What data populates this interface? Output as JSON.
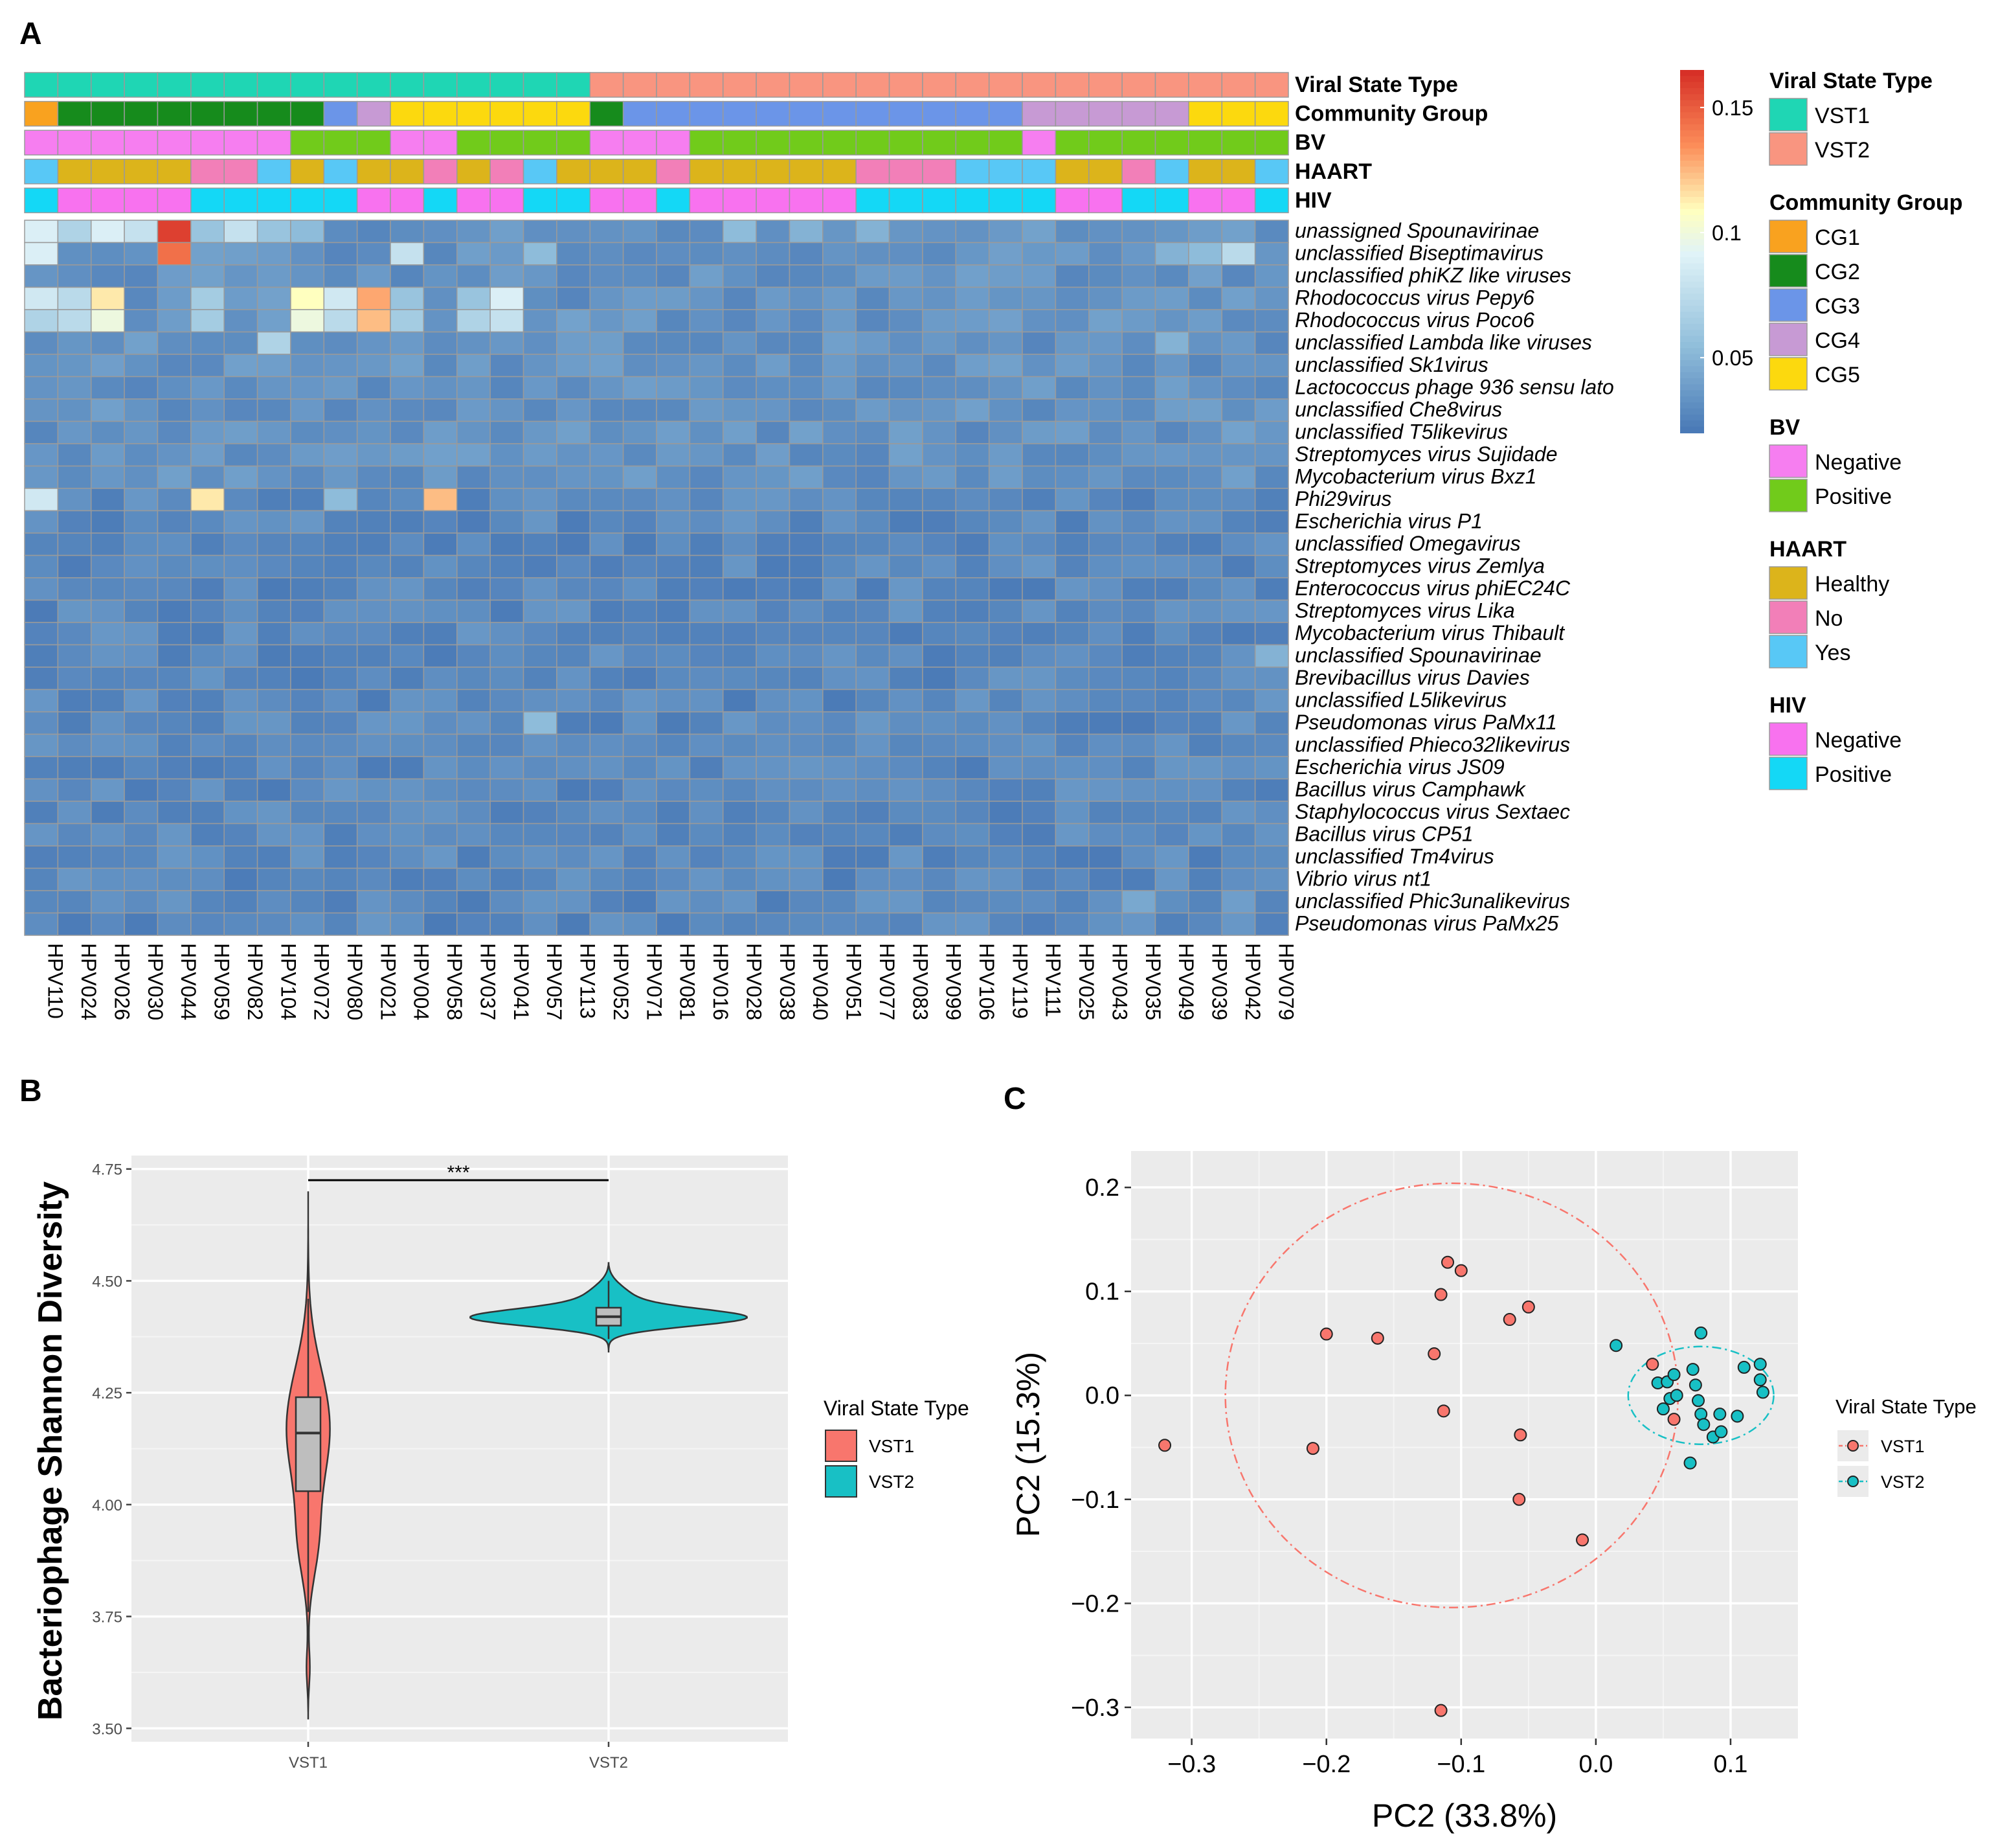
{
  "chart_data": [
    {
      "panel": "A",
      "type": "heatmap",
      "samples": [
        "HPV110",
        "HPV024",
        "HPV026",
        "HPV030",
        "HPV044",
        "HPV059",
        "HPV082",
        "HPV104",
        "HPV072",
        "HPV080",
        "HPV021",
        "HPV004",
        "HPV058",
        "HPV037",
        "HPV041",
        "HPV057",
        "HPV113",
        "HPV052",
        "HPV071",
        "HPV081",
        "HPV016",
        "HPV028",
        "HPV038",
        "HPV040",
        "HPV051",
        "HPV077",
        "HPV083",
        "HPV099",
        "HPV106",
        "HPV119",
        "HPV111",
        "HPV025",
        "HPV043",
        "HPV035",
        "HPV049",
        "HPV039",
        "HPV042",
        "HPV079"
      ],
      "rows": [
        "unassigned Spounavirinae",
        "unclassified Biseptimavirus",
        "unclassified phiKZ like viruses",
        "Rhodococcus virus Pepy6",
        "Rhodococcus virus Poco6",
        "unclassified Lambda like viruses",
        "unclassified Sk1virus",
        "Lactococcus phage 936 sensu lato",
        "unclassified Che8virus",
        "unclassified T5likevirus",
        "Streptomyces virus Sujidade",
        "Mycobacterium virus Bxz1",
        "Phi29virus",
        "Escherichia virus P1",
        "unclassified Omegavirus",
        "Streptomyces virus Zemlya",
        "Enterococcus virus phiEC24C",
        "Streptomyces virus Lika",
        "Mycobacterium virus Thibault",
        "unclassified Spounavirinae",
        "Brevibacillus virus Davies",
        "unclassified L5likevirus",
        "Pseudomonas virus PaMx11",
        "unclassified Phieco32likevirus",
        "Escherichia virus JS09",
        "Bacillus virus Camphawk",
        "Staphylococcus virus Sextaec",
        "Bacillus virus CP51",
        "unclassified Tm4virus",
        "Vibrio virus nt1",
        "unclassified Phic3unalikevirus",
        "Pseudomonas virus PaMx25"
      ],
      "highlights": [
        {
          "row": 0,
          "col": 0,
          "v": 0.09
        },
        {
          "row": 0,
          "col": 1,
          "v": 0.07
        },
        {
          "row": 0,
          "col": 2,
          "v": 0.09
        },
        {
          "row": 0,
          "col": 3,
          "v": 0.08
        },
        {
          "row": 0,
          "col": 4,
          "v": 0.16
        },
        {
          "row": 0,
          "col": 5,
          "v": 0.06
        },
        {
          "row": 0,
          "col": 6,
          "v": 0.08
        },
        {
          "row": 0,
          "col": 7,
          "v": 0.06
        },
        {
          "row": 0,
          "col": 8,
          "v": 0.055
        },
        {
          "row": 0,
          "col": 21,
          "v": 0.055
        },
        {
          "row": 0,
          "col": 23,
          "v": 0.05
        },
        {
          "row": 0,
          "col": 25,
          "v": 0.05
        },
        {
          "row": 1,
          "col": 0,
          "v": 0.09
        },
        {
          "row": 1,
          "col": 4,
          "v": 0.145
        },
        {
          "row": 1,
          "col": 11,
          "v": 0.08
        },
        {
          "row": 1,
          "col": 15,
          "v": 0.055
        },
        {
          "row": 1,
          "col": 34,
          "v": 0.05
        },
        {
          "row": 1,
          "col": 35,
          "v": 0.055
        },
        {
          "row": 1,
          "col": 36,
          "v": 0.075
        },
        {
          "row": 3,
          "col": 0,
          "v": 0.085
        },
        {
          "row": 3,
          "col": 1,
          "v": 0.075
        },
        {
          "row": 3,
          "col": 2,
          "v": 0.115
        },
        {
          "row": 3,
          "col": 5,
          "v": 0.065
        },
        {
          "row": 3,
          "col": 8,
          "v": 0.11
        },
        {
          "row": 3,
          "col": 9,
          "v": 0.085
        },
        {
          "row": 3,
          "col": 10,
          "v": 0.13
        },
        {
          "row": 3,
          "col": 11,
          "v": 0.06
        },
        {
          "row": 3,
          "col": 13,
          "v": 0.06
        },
        {
          "row": 3,
          "col": 14,
          "v": 0.09
        },
        {
          "row": 4,
          "col": 0,
          "v": 0.07
        },
        {
          "row": 4,
          "col": 1,
          "v": 0.075
        },
        {
          "row": 4,
          "col": 2,
          "v": 0.1
        },
        {
          "row": 4,
          "col": 5,
          "v": 0.065
        },
        {
          "row": 4,
          "col": 8,
          "v": 0.1
        },
        {
          "row": 4,
          "col": 9,
          "v": 0.075
        },
        {
          "row": 4,
          "col": 10,
          "v": 0.125
        },
        {
          "row": 4,
          "col": 11,
          "v": 0.065
        },
        {
          "row": 4,
          "col": 13,
          "v": 0.07
        },
        {
          "row": 4,
          "col": 14,
          "v": 0.08
        },
        {
          "row": 5,
          "col": 7,
          "v": 0.07
        },
        {
          "row": 5,
          "col": 34,
          "v": 0.05
        },
        {
          "row": 12,
          "col": 0,
          "v": 0.085
        },
        {
          "row": 12,
          "col": 5,
          "v": 0.115
        },
        {
          "row": 12,
          "col": 9,
          "v": 0.055
        },
        {
          "row": 12,
          "col": 12,
          "v": 0.125
        },
        {
          "row": 19,
          "col": 37,
          "v": 0.05
        },
        {
          "row": 22,
          "col": 15,
          "v": 0.055
        },
        {
          "row": 30,
          "col": 33,
          "v": 0.045
        },
        {
          "row": 30,
          "col": 36,
          "v": 0.04
        },
        {
          "row": 9,
          "col": 31,
          "v": 0.04
        },
        {
          "row": 24,
          "col": 19,
          "v": 0.035
        }
      ],
      "annotations": {
        "Viral State Type": [
          "VST1",
          "VST1",
          "VST1",
          "VST1",
          "VST1",
          "VST1",
          "VST1",
          "VST1",
          "VST1",
          "VST1",
          "VST1",
          "VST1",
          "VST1",
          "VST1",
          "VST1",
          "VST1",
          "VST1",
          "VST2",
          "VST2",
          "VST2",
          "VST2",
          "VST2",
          "VST2",
          "VST2",
          "VST2",
          "VST2",
          "VST2",
          "VST2",
          "VST2",
          "VST2",
          "VST2",
          "VST2",
          "VST2",
          "VST2",
          "VST2",
          "VST2",
          "VST2",
          "VST2"
        ],
        "Community Group": [
          "CG1",
          "CG2",
          "CG2",
          "CG2",
          "CG2",
          "CG2",
          "CG2",
          "CG2",
          "CG2",
          "CG3",
          "CG4",
          "CG5",
          "CG5",
          "CG5",
          "CG5",
          "CG5",
          "CG5",
          "CG2",
          "CG3",
          "CG3",
          "CG3",
          "CG3",
          "CG3",
          "CG3",
          "CG3",
          "CG3",
          "CG3",
          "CG3",
          "CG3",
          "CG3",
          "CG4",
          "CG4",
          "CG4",
          "CG4",
          "CG4",
          "CG5",
          "CG5",
          "CG5"
        ],
        "BV": [
          "Negative",
          "Negative",
          "Negative",
          "Negative",
          "Negative",
          "Negative",
          "Negative",
          "Negative",
          "Positive",
          "Positive",
          "Positive",
          "Negative",
          "Negative",
          "Positive",
          "Positive",
          "Positive",
          "Positive",
          "Negative",
          "Negative",
          "Negative",
          "Positive",
          "Positive",
          "Positive",
          "Positive",
          "Positive",
          "Positive",
          "Positive",
          "Positive",
          "Positive",
          "Positive",
          "Negative",
          "Positive",
          "Positive",
          "Positive",
          "Positive",
          "Positive",
          "Positive",
          "Positive"
        ],
        "HAART": [
          "Yes",
          "Healthy",
          "Healthy",
          "Healthy",
          "Healthy",
          "No",
          "No",
          "Yes",
          "Healthy",
          "Yes",
          "Healthy",
          "Healthy",
          "No",
          "Healthy",
          "No",
          "Yes",
          "Healthy",
          "Healthy",
          "Healthy",
          "No",
          "Healthy",
          "Healthy",
          "Healthy",
          "Healthy",
          "Healthy",
          "No",
          "No",
          "No",
          "Yes",
          "Yes",
          "Yes",
          "Healthy",
          "Healthy",
          "No",
          "Yes",
          "Healthy",
          "Healthy",
          "Yes"
        ],
        "HIV": [
          "Positive",
          "Negative",
          "Negative",
          "Negative",
          "Negative",
          "Positive",
          "Positive",
          "Positive",
          "Positive",
          "Positive",
          "Negative",
          "Negative",
          "Positive",
          "Negative",
          "Negative",
          "Positive",
          "Positive",
          "Negative",
          "Negative",
          "Positive",
          "Negative",
          "Negative",
          "Negative",
          "Negative",
          "Negative",
          "Positive",
          "Positive",
          "Positive",
          "Positive",
          "Positive",
          "Positive",
          "Negative",
          "Negative",
          "Positive",
          "Positive",
          "Negative",
          "Negative",
          "Positive"
        ]
      },
      "colorbar": {
        "ticks": [
          "0.15",
          "0.1",
          "0.05"
        ],
        "tick_values": [
          0.15,
          0.1,
          0.05
        ],
        "range": [
          0.02,
          0.165
        ]
      },
      "legends": [
        {
          "title": "Viral State Type",
          "entries": [
            {
              "label": "VST1",
              "color": "#1fd6b4"
            },
            {
              "label": "VST2",
              "color": "#f99580"
            }
          ]
        },
        {
          "title": "Community Group",
          "entries": [
            {
              "label": "CG1",
              "color": "#f9a21f"
            },
            {
              "label": "CG2",
              "color": "#168b1c"
            },
            {
              "label": "CG3",
              "color": "#6b95e8"
            },
            {
              "label": "CG4",
              "color": "#c79ad4"
            },
            {
              "label": "CG5",
              "color": "#fcd90e"
            }
          ]
        },
        {
          "title": "BV",
          "entries": [
            {
              "label": "Negative",
              "color": "#f67ef0"
            },
            {
              "label": "Positive",
              "color": "#71cb1b"
            }
          ]
        },
        {
          "title": "HAART",
          "entries": [
            {
              "label": "Healthy",
              "color": "#dcb41b"
            },
            {
              "label": "No",
              "color": "#f27fb8"
            },
            {
              "label": "Yes",
              "color": "#58c8f6"
            }
          ]
        },
        {
          "title": "HIV",
          "entries": [
            {
              "label": "Negative",
              "color": "#f872ef"
            },
            {
              "label": "Positive",
              "color": "#14d8f6"
            }
          ]
        }
      ]
    },
    {
      "panel": "B",
      "type": "violin",
      "ylabel": "Bacteriophage Shannon Diversity",
      "categories": [
        "VST1",
        "VST2"
      ],
      "ylim": [
        3.47,
        4.78
      ],
      "yticks": [
        "3.50",
        "3.75",
        "4.00",
        "4.25",
        "4.50",
        "4.75"
      ],
      "significance": "***",
      "series": [
        {
          "name": "VST1",
          "color": "#f8766d",
          "min": 3.52,
          "max": 4.7,
          "q1": 4.03,
          "median": 4.16,
          "q3": 4.24,
          "whisker_low": 3.76,
          "whisker_high": 4.46
        },
        {
          "name": "VST2",
          "color": "#18c0c5",
          "min": 4.34,
          "max": 4.54,
          "q1": 4.4,
          "median": 4.42,
          "q3": 4.44,
          "whisker_low": 4.37,
          "whisker_high": 4.5
        }
      ],
      "legend": {
        "title": "Viral State Type",
        "entries": [
          "VST1",
          "VST2"
        ],
        "position": "right"
      }
    },
    {
      "panel": "C",
      "type": "scatter",
      "xlabel": "PC2 (33.8%)",
      "ylabel": "PC2 (15.3%)",
      "xlim": [
        -0.345,
        0.15
      ],
      "ylim": [
        -0.33,
        0.235
      ],
      "xticks": [
        "−0.3",
        "−0.2",
        "−0.1",
        "0.0",
        "0.1"
      ],
      "yticks": [
        "−0.3",
        "−0.2",
        "−0.1",
        "0.0",
        "0.1",
        "0.2"
      ],
      "series": [
        {
          "name": "VST1",
          "color": "#f8766d",
          "ellipse": {
            "cx": -0.107,
            "cy": 0.0,
            "rx": 0.168,
            "ry": 0.204
          },
          "points": [
            [
              -0.32,
              -0.048
            ],
            [
              -0.21,
              -0.051
            ],
            [
              -0.2,
              0.059
            ],
            [
              -0.162,
              0.055
            ],
            [
              -0.12,
              0.04
            ],
            [
              -0.115,
              0.097
            ],
            [
              -0.11,
              0.128
            ],
            [
              -0.1,
              0.12
            ],
            [
              -0.113,
              -0.015
            ],
            [
              -0.064,
              0.073
            ],
            [
              -0.05,
              0.085
            ],
            [
              -0.056,
              -0.038
            ],
            [
              -0.057,
              -0.1
            ],
            [
              -0.01,
              -0.139
            ],
            [
              -0.115,
              -0.303
            ],
            [
              0.042,
              0.03
            ],
            [
              0.058,
              -0.023
            ]
          ]
        },
        {
          "name": "VST2",
          "color": "#18c0c5",
          "ellipse": {
            "cx": 0.078,
            "cy": 0.0,
            "rx": 0.054,
            "ry": 0.047
          },
          "points": [
            [
              0.015,
              0.048
            ],
            [
              0.078,
              0.06
            ],
            [
              0.046,
              0.012
            ],
            [
              0.053,
              0.013
            ],
            [
              0.055,
              -0.003
            ],
            [
              0.05,
              -0.013
            ],
            [
              0.058,
              0.02
            ],
            [
              0.072,
              0.025
            ],
            [
              0.074,
              0.01
            ],
            [
              0.076,
              -0.005
            ],
            [
              0.078,
              -0.018
            ],
            [
              0.08,
              -0.028
            ],
            [
              0.092,
              -0.018
            ],
            [
              0.087,
              -0.04
            ],
            [
              0.093,
              -0.035
            ],
            [
              0.105,
              -0.02
            ],
            [
              0.11,
              0.027
            ],
            [
              0.122,
              0.03
            ],
            [
              0.122,
              0.015
            ],
            [
              0.124,
              0.003
            ],
            [
              0.07,
              -0.065
            ],
            [
              0.06,
              0.0
            ]
          ]
        }
      ],
      "legend": {
        "title": "Viral State Type",
        "entries": [
          "VST1",
          "VST2"
        ],
        "position": "right"
      }
    }
  ],
  "panel_labels": {
    "a": "A",
    "b": "B",
    "c": "C"
  }
}
